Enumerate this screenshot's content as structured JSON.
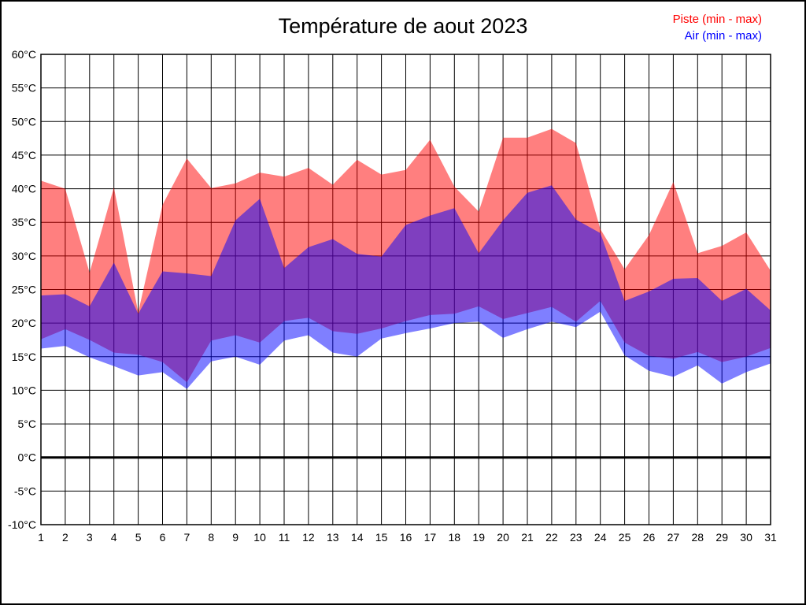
{
  "title": "Température de aout 2023",
  "legend": {
    "piste": {
      "label": "Piste (min - max)",
      "color": "#ff0000"
    },
    "air": {
      "label": "Air (min - max)",
      "color": "#0000ff"
    }
  },
  "chart_data": {
    "type": "area",
    "title": "Température de aout 2023",
    "x": [
      1,
      2,
      3,
      4,
      5,
      6,
      7,
      8,
      9,
      10,
      11,
      12,
      13,
      14,
      15,
      16,
      17,
      18,
      19,
      20,
      21,
      22,
      23,
      24,
      25,
      26,
      27,
      28,
      29,
      30,
      31
    ],
    "x_tick_labels": [
      "1",
      "2",
      "3",
      "4",
      "5",
      "6",
      "7",
      "8",
      "9",
      "10",
      "11",
      "12",
      "13",
      "14",
      "15",
      "16",
      "17",
      "18",
      "19",
      "20",
      "21",
      "22",
      "23",
      "24",
      "25",
      "26",
      "27",
      "28",
      "29",
      "30",
      "31"
    ],
    "y_ticks": [
      60,
      55,
      50,
      45,
      40,
      35,
      30,
      25,
      20,
      15,
      10,
      5,
      0,
      -5,
      -10
    ],
    "y_tick_suffix": "°C",
    "ylim": [
      -10,
      60
    ],
    "grid": true,
    "zero_line": true,
    "series": [
      {
        "name": "Piste (min - max)",
        "fill": "rgba(255,0,0,0.5)",
        "max": [
          41.2,
          40.0,
          27.5,
          40.2,
          21.6,
          37.6,
          44.5,
          40.1,
          40.8,
          42.4,
          41.8,
          43.1,
          40.6,
          44.3,
          42.1,
          42.8,
          47.3,
          40.3,
          36.6,
          47.6,
          47.6,
          48.9,
          46.8,
          34.0,
          28.0,
          33.1,
          41.0,
          30.4,
          31.5,
          33.5,
          27.8
        ],
        "min": [
          17.6,
          19.1,
          17.5,
          15.6,
          15.3,
          14.2,
          11.2,
          17.4,
          18.2,
          17.1,
          20.3,
          20.8,
          18.8,
          18.4,
          19.2,
          20.3,
          21.2,
          21.4,
          22.5,
          20.6,
          21.5,
          22.4,
          20.2,
          23.3,
          17.1,
          15.1,
          14.7,
          15.7,
          14.2,
          15.0,
          16.3
        ]
      },
      {
        "name": "Air (min - max)",
        "fill": "rgba(0,0,255,0.5)",
        "max": [
          24.1,
          24.3,
          22.5,
          29.0,
          21.4,
          27.7,
          27.4,
          27.0,
          35.3,
          38.5,
          28.2,
          31.3,
          32.5,
          30.3,
          29.9,
          34.6,
          36.0,
          37.1,
          30.4,
          35.3,
          39.4,
          40.5,
          35.4,
          33.4,
          23.3,
          24.7,
          26.6,
          26.7,
          23.3,
          25.1,
          21.9
        ],
        "min": [
          16.2,
          16.6,
          14.9,
          13.6,
          12.2,
          12.7,
          10.2,
          14.3,
          15.0,
          13.8,
          17.4,
          18.2,
          15.6,
          15.0,
          17.7,
          18.5,
          19.2,
          20.0,
          20.2,
          17.8,
          19.1,
          20.2,
          19.4,
          21.7,
          15.2,
          12.9,
          12.0,
          13.7,
          11.0,
          12.7,
          14.0
        ]
      }
    ]
  }
}
